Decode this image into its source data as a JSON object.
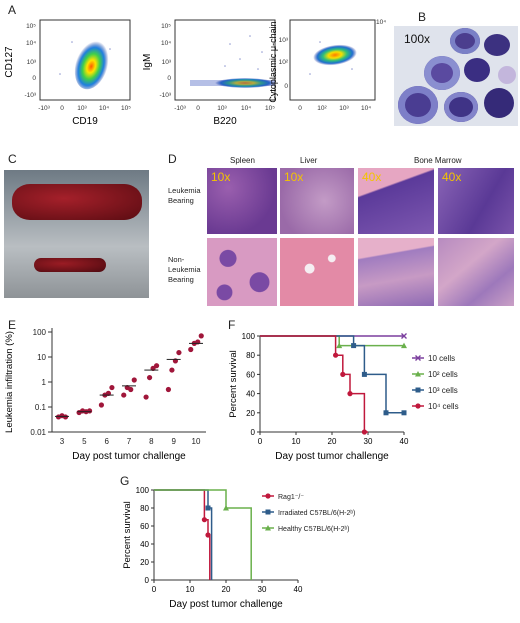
{
  "panels": {
    "A": {
      "label": "A",
      "plots": [
        {
          "ylabel": "CD127",
          "xlabel": "CD19",
          "yticks": [
            "10^5",
            "10^4",
            "10^3",
            "0",
            "-10^3"
          ],
          "xticks": [
            "-10^3",
            "0",
            "10^3",
            "10^4",
            "10^5"
          ]
        },
        {
          "ylabel": "IgM",
          "xlabel": "B220",
          "yticks": [
            "10^5",
            "10^4",
            "10^3",
            "0",
            "-10^3"
          ],
          "xticks": [
            "-10^3",
            "0",
            "10^3",
            "10^4",
            "10^5"
          ]
        },
        {
          "ylabel": "Cytoplasmic μ-chain",
          "xlabel": "",
          "yticks": [
            "10^4",
            "10^3",
            "10^2",
            "0"
          ],
          "xticks": [
            "0",
            "10^2",
            "10^3",
            "10^4"
          ]
        }
      ]
    },
    "B": {
      "label": "B",
      "magnification": "100x"
    },
    "C": {
      "label": "C"
    },
    "D": {
      "label": "D",
      "columns": [
        "Spleen",
        "Liver",
        "Bone Marrow"
      ],
      "rows": [
        "Leukemia Bearing",
        "Non-Leukemia Bearing"
      ],
      "magnifications": [
        "10x",
        "10x",
        "40x",
        "40x"
      ]
    },
    "E": {
      "label": "E"
    },
    "F": {
      "label": "F"
    },
    "G": {
      "label": "G"
    }
  },
  "chart_data": [
    {
      "panel": "E",
      "type": "scatter",
      "xlabel": "Day post tumor challenge",
      "ylabel": "Leukemia infiltration (%)",
      "yscale": "log",
      "ylim": [
        0.01,
        100
      ],
      "yticks": [
        "0.01",
        "0.1",
        "1",
        "10",
        "100"
      ],
      "x": [
        3,
        5,
        6,
        7,
        8,
        9,
        10
      ],
      "points": [
        {
          "day": 3,
          "values": [
            0.04,
            0.045,
            0.04
          ]
        },
        {
          "day": 5,
          "values": [
            0.06,
            0.07,
            0.065,
            0.07
          ]
        },
        {
          "day": 6,
          "values": [
            0.12,
            0.3,
            0.35,
            0.6
          ]
        },
        {
          "day": 7,
          "values": [
            0.3,
            0.6,
            0.5,
            1.2
          ]
        },
        {
          "day": 8,
          "values": [
            0.25,
            1.5,
            3.5,
            4.5
          ]
        },
        {
          "day": 9,
          "values": [
            0.5,
            3.0,
            7.0,
            15
          ]
        },
        {
          "day": 10,
          "values": [
            20,
            35,
            40,
            70
          ]
        }
      ],
      "means": [
        0.042,
        0.065,
        0.3,
        0.7,
        3.0,
        8.0,
        35
      ]
    },
    {
      "panel": "F",
      "type": "line",
      "xlabel": "Day post tumor challenge",
      "ylabel": "Percent survival",
      "xlim": [
        0,
        40
      ],
      "ylim": [
        0,
        100
      ],
      "xticks": [
        "0",
        "10",
        "20",
        "30",
        "40"
      ],
      "yticks": [
        "0",
        "20",
        "40",
        "60",
        "80",
        "100"
      ],
      "series": [
        {
          "name": "10 cells",
          "color": "#7b3f9e",
          "marker": "x",
          "steps": [
            [
              0,
              100
            ],
            [
              40,
              100
            ]
          ]
        },
        {
          "name": "10² cells",
          "color": "#6ab04c",
          "marker": "tri",
          "steps": [
            [
              0,
              100
            ],
            [
              22,
              100
            ],
            [
              22,
              90
            ],
            [
              40,
              90
            ]
          ]
        },
        {
          "name": "10³ cells",
          "color": "#2e5c8a",
          "marker": "sq",
          "steps": [
            [
              0,
              100
            ],
            [
              26,
              100
            ],
            [
              26,
              90
            ],
            [
              29,
              90
            ],
            [
              29,
              60
            ],
            [
              35,
              60
            ],
            [
              35,
              20
            ],
            [
              40,
              20
            ]
          ]
        },
        {
          "name": "10⁴ cells",
          "color": "#c0183c",
          "marker": "dot",
          "steps": [
            [
              0,
              100
            ],
            [
              21,
              100
            ],
            [
              21,
              80
            ],
            [
              23,
              80
            ],
            [
              23,
              60
            ],
            [
              25,
              60
            ],
            [
              25,
              40
            ],
            [
              29,
              40
            ],
            [
              29,
              0
            ],
            [
              30,
              0
            ]
          ]
        }
      ]
    },
    {
      "panel": "G",
      "type": "line",
      "xlabel": "Day post tumor challenge",
      "ylabel": "Percent survival",
      "xlim": [
        0,
        40
      ],
      "ylim": [
        0,
        100
      ],
      "xticks": [
        "0",
        "10",
        "20",
        "30",
        "40"
      ],
      "yticks": [
        "0",
        "20",
        "40",
        "60",
        "80",
        "100"
      ],
      "series": [
        {
          "name": "Rag1⁻/⁻",
          "color": "#c0183c",
          "marker": "dot",
          "steps": [
            [
              0,
              100
            ],
            [
              14,
              100
            ],
            [
              14,
              67
            ],
            [
              15,
              67
            ],
            [
              15,
              50
            ],
            [
              15.5,
              50
            ],
            [
              15.5,
              0
            ]
          ]
        },
        {
          "name": "Irradiated C57BL/6(H-2ᵇ)",
          "color": "#2e5c8a",
          "marker": "sq",
          "steps": [
            [
              0,
              100
            ],
            [
              15,
              100
            ],
            [
              15,
              80
            ],
            [
              16,
              80
            ],
            [
              16,
              0
            ]
          ]
        },
        {
          "name": "Healthy C57BL/6(H-2ᵇ)",
          "color": "#6ab04c",
          "marker": "tri",
          "steps": [
            [
              0,
              100
            ],
            [
              20,
              100
            ],
            [
              20,
              80
            ],
            [
              27,
              80
            ],
            [
              27,
              0
            ]
          ]
        }
      ]
    }
  ]
}
